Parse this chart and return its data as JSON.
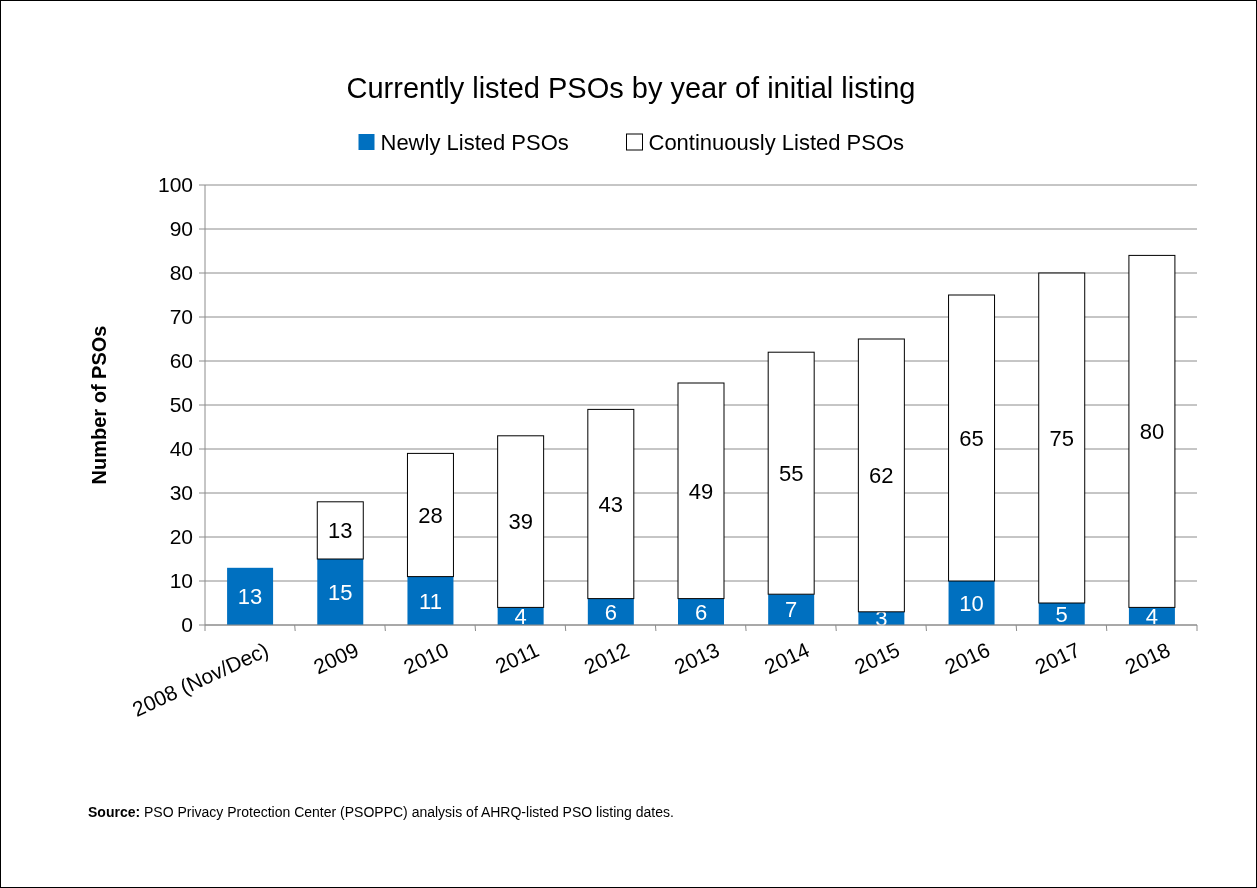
{
  "chart_data": {
    "type": "bar",
    "title": "Currently listed PSOs by year of initial listing",
    "ylabel": "Number of PSOs",
    "categories": [
      "2008 (Nov/Dec)",
      "2009",
      "2010",
      "2011",
      "2012",
      "2013",
      "2014",
      "2015",
      "2016",
      "2017",
      "2018"
    ],
    "series": [
      {
        "name": "Newly Listed PSOs",
        "color": "#0070c0",
        "values": [
          13,
          15,
          11,
          4,
          6,
          6,
          7,
          3,
          10,
          5,
          4
        ]
      },
      {
        "name": "Continuously Listed PSOs",
        "color": "#ffffff",
        "values": [
          null,
          13,
          28,
          39,
          43,
          49,
          55,
          62,
          65,
          75,
          80
        ]
      }
    ],
    "stacked": true,
    "data_labels": true,
    "ylim": [
      0,
      100
    ],
    "yticks": [
      0,
      10,
      20,
      30,
      40,
      50,
      60,
      70,
      80,
      90,
      100
    ],
    "grid": "y",
    "legend": "top",
    "annotations": [
      "Source: PSO Privacy Protection Center (PSOPPC) analysis of AHRQ-listed PSO listing dates."
    ]
  }
}
